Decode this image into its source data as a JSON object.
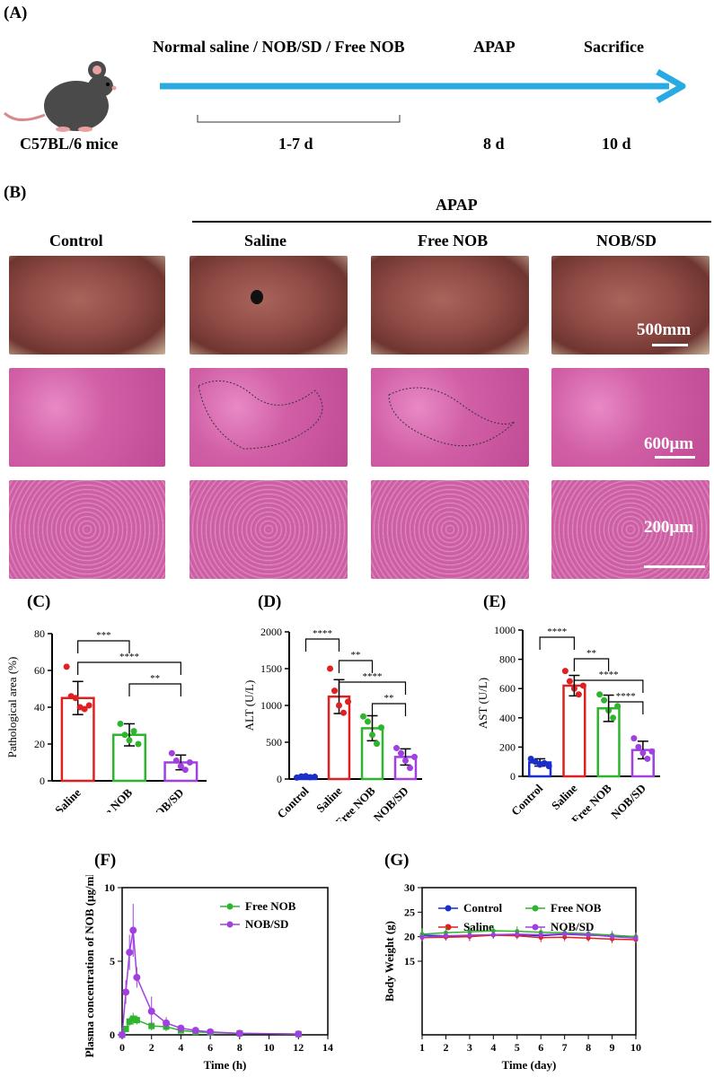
{
  "panelA": {
    "letter": "(A)",
    "mouse_label": "C57BL/6 mice",
    "treatment_label": "Normal saline / NOB/SD / Free NOB",
    "apap_label": "APAP",
    "sacrifice_label": "Sacrifice",
    "days_label": "1-7 d",
    "apap_day": "8 d",
    "sacrifice_day": "10 d",
    "colors": {
      "arrow": "#29abe2"
    }
  },
  "panelB": {
    "letter": "(B)",
    "apap_header": "APAP",
    "columns": [
      "Control",
      "Saline",
      "Free NOB",
      "NOB/SD"
    ],
    "scalebars": [
      "500mm",
      "600μm",
      "200μm"
    ]
  },
  "chart_data": [
    {
      "panel": "(C)",
      "type": "bar",
      "categories": [
        "Saline",
        "Free NOB",
        "NOB/SD"
      ],
      "values": [
        45,
        25,
        10
      ],
      "errors": [
        9,
        6,
        4
      ],
      "colors": [
        "#e02020",
        "#2db52d",
        "#a040e0"
      ],
      "ylabel": "Pathological area (%)",
      "ylim": [
        0,
        80
      ],
      "yticks": [
        0,
        20,
        40,
        60,
        80
      ],
      "points": [
        [
          62,
          46,
          45,
          40,
          39,
          41
        ],
        [
          31,
          25,
          22,
          27,
          20
        ],
        [
          15,
          11,
          8,
          6,
          10
        ]
      ],
      "significance": [
        [
          "Saline",
          "Free NOB",
          "***"
        ],
        [
          "Saline",
          "NOB/SD",
          "****"
        ],
        [
          "Free NOB",
          "NOB/SD",
          "**"
        ]
      ]
    },
    {
      "panel": "(D)",
      "type": "bar",
      "categories": [
        "Control",
        "Saline",
        "Free NOB",
        "NOB/SD"
      ],
      "values": [
        30,
        1120,
        690,
        300
      ],
      "errors": [
        15,
        230,
        170,
        110
      ],
      "colors": [
        "#1a2ecc",
        "#e02020",
        "#2db52d",
        "#a040e0"
      ],
      "ylabel": "ALT (U/L)",
      "ylim": [
        0,
        2000
      ],
      "yticks": [
        0,
        500,
        1000,
        1500,
        2000
      ],
      "points": [
        [
          20,
          35,
          40,
          25,
          30
        ],
        [
          1500,
          1200,
          1000,
          900,
          1050
        ],
        [
          850,
          780,
          600,
          480,
          700
        ],
        [
          420,
          350,
          250,
          150,
          300
        ]
      ],
      "significance": [
        [
          "Control",
          "Saline",
          "****"
        ],
        [
          "Saline",
          "Free NOB",
          "**"
        ],
        [
          "Saline",
          "NOB/SD",
          "****"
        ],
        [
          "Free NOB",
          "NOB/SD",
          "**"
        ]
      ]
    },
    {
      "panel": "(E)",
      "type": "bar",
      "categories": [
        "Control",
        "Saline",
        "Free NOB",
        "NOB/SD"
      ],
      "values": [
        95,
        620,
        465,
        180
      ],
      "errors": [
        25,
        70,
        90,
        60
      ],
      "colors": [
        "#1a2ecc",
        "#e02020",
        "#2db52d",
        "#a040e0"
      ],
      "ylabel": "AST (U/L)",
      "ylim": [
        0,
        1000
      ],
      "yticks": [
        0,
        200,
        400,
        600,
        800,
        1000
      ],
      "points": [
        [
          120,
          100,
          80,
          90,
          70
        ],
        [
          720,
          650,
          600,
          560,
          620
        ],
        [
          560,
          520,
          450,
          400,
          480
        ],
        [
          260,
          200,
          160,
          120,
          170
        ]
      ],
      "significance": [
        [
          "Control",
          "Saline",
          "****"
        ],
        [
          "Saline",
          "Free NOB",
          "**"
        ],
        [
          "Saline",
          "NOB/SD",
          "****"
        ],
        [
          "Free NOB",
          "NOB/SD",
          "****"
        ]
      ]
    },
    {
      "panel": "(F)",
      "type": "line",
      "xlabel": "Time (h)",
      "ylabel": "Plasma concentration of NOB (μg/mL)",
      "xlim": [
        0,
        14
      ],
      "ylim": [
        0,
        10
      ],
      "xticks": [
        0,
        2,
        4,
        6,
        8,
        10,
        12,
        14
      ],
      "yticks": [
        0,
        5,
        10
      ],
      "series": [
        {
          "name": "Free NOB",
          "color": "#2db52d",
          "marker": "square",
          "x": [
            0,
            0.25,
            0.5,
            0.75,
            1,
            2,
            3,
            4,
            5,
            6,
            8,
            12
          ],
          "y": [
            0,
            0.4,
            0.9,
            1.1,
            1.0,
            0.6,
            0.55,
            0.3,
            0.2,
            0.15,
            0.1,
            0.05
          ],
          "err": [
            0,
            0.2,
            0.3,
            0.4,
            0.3,
            0.3,
            0.3,
            0.2,
            0.1,
            0.1,
            0.05,
            0.02
          ]
        },
        {
          "name": "NOB/SD",
          "color": "#a040e0",
          "marker": "circle",
          "x": [
            0,
            0.25,
            0.5,
            0.75,
            1,
            2,
            3,
            4,
            5,
            6,
            8,
            12
          ],
          "y": [
            0,
            2.9,
            5.6,
            7.1,
            3.9,
            1.6,
            0.8,
            0.45,
            0.3,
            0.2,
            0.1,
            0.05
          ],
          "err": [
            0,
            0.8,
            1.2,
            1.8,
            0.7,
            1.0,
            0.4,
            0.2,
            0.15,
            0.1,
            0.05,
            0.02
          ]
        }
      ]
    },
    {
      "panel": "(G)",
      "type": "line",
      "xlabel": "Time (day)",
      "ylabel": "Body Weight (g)",
      "xlim": [
        1,
        10
      ],
      "ylim": [
        0,
        30
      ],
      "xticks": [
        1,
        2,
        3,
        4,
        5,
        6,
        7,
        8,
        9,
        10
      ],
      "yticks": [
        15,
        20,
        25,
        30
      ],
      "series": [
        {
          "name": "Control",
          "color": "#1a2ecc",
          "x": [
            1,
            2,
            3,
            4,
            5,
            6,
            7,
            8,
            9,
            10
          ],
          "y": [
            20.3,
            20.2,
            20.1,
            20.4,
            20.4,
            20.2,
            20.5,
            20.3,
            20.2,
            20.0
          ],
          "err": [
            0.6,
            0.6,
            0.7,
            0.6,
            0.6,
            0.6,
            0.6,
            0.6,
            0.6,
            0.6
          ]
        },
        {
          "name": "Saline",
          "color": "#e02020",
          "x": [
            1,
            2,
            3,
            4,
            5,
            6,
            7,
            8,
            9,
            10
          ],
          "y": [
            19.8,
            19.9,
            20.0,
            20.3,
            20.2,
            19.8,
            19.9,
            19.7,
            19.5,
            19.4
          ],
          "err": [
            0.7,
            0.7,
            0.9,
            0.7,
            0.7,
            0.9,
            0.8,
            0.7,
            0.8,
            0.7
          ]
        },
        {
          "name": "Free NOB",
          "color": "#2db52d",
          "x": [
            1,
            2,
            3,
            4,
            5,
            6,
            7,
            8,
            9,
            10
          ],
          "y": [
            20.5,
            20.8,
            21.0,
            21.2,
            21.1,
            20.9,
            20.8,
            20.6,
            20.3,
            20.0
          ],
          "err": [
            1.2,
            1.3,
            1.2,
            1.1,
            1.0,
            1.0,
            0.9,
            0.8,
            0.9,
            0.8
          ]
        },
        {
          "name": "NOB/SD",
          "color": "#a040e0",
          "x": [
            1,
            2,
            3,
            4,
            5,
            6,
            7,
            8,
            9,
            10
          ],
          "y": [
            19.9,
            20.2,
            20.3,
            20.4,
            20.5,
            20.4,
            20.6,
            20.4,
            20.0,
            19.7
          ],
          "err": [
            0.8,
            0.8,
            0.8,
            0.8,
            0.8,
            0.8,
            0.8,
            0.8,
            0.8,
            0.8
          ]
        }
      ]
    }
  ]
}
